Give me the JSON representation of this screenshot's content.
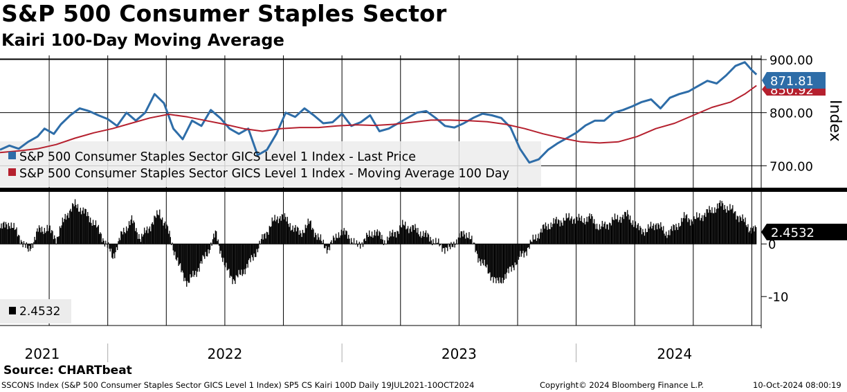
{
  "title": "S&P 500 Consumer Staples Sector",
  "subtitle": "Kairi 100-Day Moving Average",
  "source": "Source: CHARTbeat",
  "footer": {
    "left": "SSCONS Index (S&P 500 Consumer Staples Sector GICS Level 1 Index) SP5 CS Kairi 100D  Daily 19JUL2021-10OCT2024",
    "center": "Copyright© 2024 Bloomberg Finance L.P.",
    "right": "10-Oct-2024 08:00:19"
  },
  "colors": {
    "price": "#2e6da8",
    "ma": "#b5202e",
    "kairi": "#000000",
    "legend_bg": "#ececec"
  },
  "chart_data": [
    {
      "type": "line",
      "title": "S&P 500 Consumer Staples Sector",
      "ylabel": "Index",
      "ylim": [
        660,
        900
      ],
      "yticks": [
        700,
        800,
        900
      ],
      "ytick_labels": [
        "700.00",
        "800.00",
        "900.00"
      ],
      "xlim": [
        2021.54,
        2024.79
      ],
      "x_labels": [
        "2021",
        "2022",
        "2023",
        "2024"
      ],
      "legend_position": "bottom-left",
      "series": [
        {
          "name": "S&P 500 Consumer Staples Sector GICS Level 1 Index - Last Price",
          "last_value_label": "871.81",
          "x": [
            2021.54,
            2021.58,
            2021.62,
            2021.66,
            2021.7,
            2021.73,
            2021.77,
            2021.8,
            2021.84,
            2021.88,
            2021.92,
            2021.96,
            2022.0,
            2022.04,
            2022.08,
            2022.12,
            2022.16,
            2022.2,
            2022.24,
            2022.28,
            2022.32,
            2022.36,
            2022.4,
            2022.44,
            2022.48,
            2022.52,
            2022.56,
            2022.6,
            2022.64,
            2022.68,
            2022.72,
            2022.76,
            2022.8,
            2022.84,
            2022.88,
            2022.92,
            2022.96,
            2023.0,
            2023.04,
            2023.08,
            2023.12,
            2023.16,
            2023.2,
            2023.24,
            2023.28,
            2023.32,
            2023.36,
            2023.4,
            2023.44,
            2023.48,
            2023.52,
            2023.56,
            2023.6,
            2023.64,
            2023.68,
            2023.72,
            2023.76,
            2023.8,
            2023.84,
            2023.88,
            2023.92,
            2023.96,
            2024.0,
            2024.04,
            2024.08,
            2024.12,
            2024.16,
            2024.2,
            2024.24,
            2024.28,
            2024.32,
            2024.36,
            2024.4,
            2024.44,
            2024.48,
            2024.52,
            2024.56,
            2024.6,
            2024.64,
            2024.68,
            2024.72,
            2024.75,
            2024.77
          ],
          "values": [
            730,
            738,
            732,
            745,
            755,
            770,
            760,
            778,
            795,
            808,
            803,
            795,
            788,
            775,
            800,
            785,
            800,
            835,
            818,
            770,
            750,
            785,
            775,
            805,
            790,
            770,
            760,
            770,
            720,
            730,
            760,
            800,
            792,
            808,
            795,
            780,
            782,
            798,
            775,
            782,
            795,
            765,
            770,
            780,
            790,
            800,
            803,
            790,
            775,
            772,
            780,
            790,
            798,
            795,
            790,
            772,
            732,
            706,
            712,
            730,
            742,
            752,
            762,
            776,
            785,
            785,
            800,
            805,
            812,
            820,
            825,
            808,
            828,
            835,
            840,
            850,
            860,
            855,
            870,
            888,
            895,
            880,
            871.81
          ]
        },
        {
          "name": "S&P 500 Consumer Staples Sector GICS Level 1 Index - Moving Average 100 Day",
          "last_value_label": "850.92",
          "x": [
            2021.54,
            2021.62,
            2021.7,
            2021.78,
            2021.86,
            2021.94,
            2022.02,
            2022.1,
            2022.18,
            2022.26,
            2022.34,
            2022.42,
            2022.5,
            2022.58,
            2022.66,
            2022.74,
            2022.82,
            2022.9,
            2022.98,
            2023.06,
            2023.14,
            2023.22,
            2023.3,
            2023.38,
            2023.46,
            2023.54,
            2023.62,
            2023.7,
            2023.78,
            2023.86,
            2023.94,
            2024.02,
            2024.1,
            2024.18,
            2024.26,
            2024.34,
            2024.42,
            2024.5,
            2024.58,
            2024.66,
            2024.72,
            2024.77
          ],
          "values": [
            725,
            728,
            732,
            740,
            752,
            762,
            770,
            780,
            790,
            797,
            792,
            785,
            778,
            770,
            765,
            770,
            772,
            772,
            775,
            777,
            776,
            778,
            782,
            786,
            786,
            785,
            783,
            778,
            770,
            760,
            752,
            745,
            743,
            745,
            755,
            770,
            780,
            795,
            810,
            820,
            835,
            850.92
          ]
        }
      ]
    },
    {
      "type": "bar",
      "title": "Kairi 100-Day Moving Average",
      "ylim": [
        -15.5,
        9.5
      ],
      "yticks": [
        0,
        -10
      ],
      "ytick_labels": [
        "0",
        "-10"
      ],
      "xlim": [
        2021.54,
        2024.79
      ],
      "last_value_label": "2.4532",
      "legend_entry": "2.4532",
      "x": [
        2021.54,
        2021.58,
        2021.62,
        2021.66,
        2021.7,
        2021.74,
        2021.78,
        2021.82,
        2021.86,
        2021.9,
        2021.94,
        2021.98,
        2022.02,
        2022.06,
        2022.1,
        2022.14,
        2022.18,
        2022.22,
        2022.26,
        2022.3,
        2022.34,
        2022.38,
        2022.42,
        2022.46,
        2022.5,
        2022.54,
        2022.58,
        2022.62,
        2022.66,
        2022.7,
        2022.74,
        2022.78,
        2022.82,
        2022.86,
        2022.9,
        2022.94,
        2022.98,
        2023.02,
        2023.06,
        2023.1,
        2023.14,
        2023.18,
        2023.22,
        2023.26,
        2023.3,
        2023.34,
        2023.38,
        2023.42,
        2023.46,
        2023.5,
        2023.54,
        2023.58,
        2023.62,
        2023.66,
        2023.7,
        2023.74,
        2023.78,
        2023.82,
        2023.86,
        2023.9,
        2023.94,
        2023.98,
        2024.02,
        2024.06,
        2024.1,
        2024.14,
        2024.18,
        2024.22,
        2024.26,
        2024.3,
        2024.34,
        2024.38,
        2024.42,
        2024.46,
        2024.5,
        2024.54,
        2024.58,
        2024.62,
        2024.66,
        2024.7,
        2024.74,
        2024.77
      ],
      "values": [
        3,
        4,
        1.5,
        -1.5,
        2.5,
        3,
        1,
        5.5,
        7.5,
        6,
        4,
        1,
        -2.5,
        2,
        4.5,
        1,
        3.5,
        6,
        2,
        -4,
        -7.5,
        -5,
        -2,
        2,
        -4.5,
        -7,
        -5,
        -2.5,
        1,
        4,
        5.5,
        3.5,
        2,
        4,
        1,
        -1,
        2,
        2,
        -0.5,
        1,
        2.5,
        0.5,
        2,
        3.5,
        3,
        2,
        1,
        -0.5,
        -1,
        1.5,
        2,
        -2.5,
        -5,
        -7.5,
        -6,
        -3.5,
        -1.5,
        1,
        3,
        4,
        4.5,
        5,
        4.5,
        5,
        3,
        4,
        5,
        5.5,
        3,
        2.5,
        4,
        2,
        3,
        5,
        4.5,
        5.5,
        6.5,
        7.5,
        6.5,
        5,
        3,
        2.4532
      ]
    }
  ]
}
